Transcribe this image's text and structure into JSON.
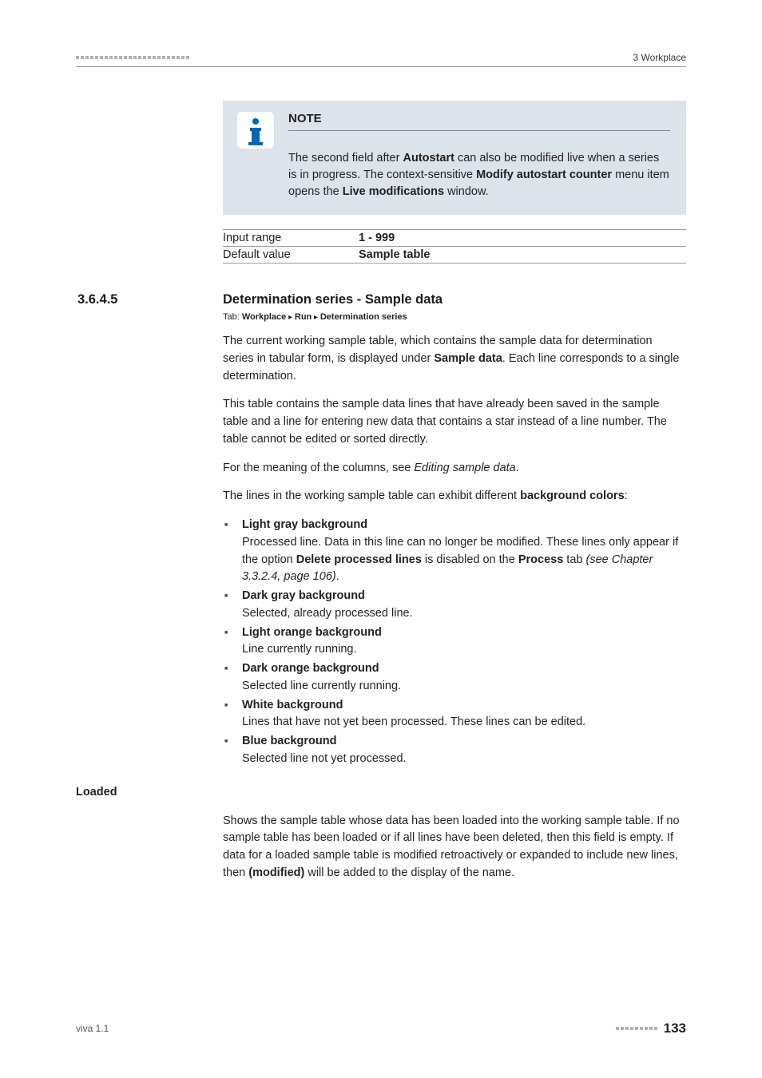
{
  "header": {
    "right": "3 Workplace",
    "dash_count": 24
  },
  "note": {
    "title": "NOTE",
    "text_parts": [
      {
        "t": "The second field after "
      },
      {
        "t": "Autostart",
        "b": true
      },
      {
        "t": " can also be modified live when a series is in progress. The context-sensitive "
      },
      {
        "t": "Modify autostart counter",
        "b": true
      },
      {
        "t": " menu item opens the "
      },
      {
        "t": "Live modifications",
        "b": true
      },
      {
        "t": " window."
      }
    ]
  },
  "specs": [
    {
      "label": "Input range",
      "value": "1 - 999"
    },
    {
      "label": "Default value",
      "value": "Sample table"
    }
  ],
  "section": {
    "number": "3.6.4.5",
    "title": "Determination series - Sample data"
  },
  "tabpath": {
    "prefix": "Tab: ",
    "parts": [
      "Workplace",
      "Run",
      "Determination series"
    ]
  },
  "paragraphs": [
    [
      {
        "t": "The current working sample table, which contains the sample data for determination series in tabular form, is displayed under "
      },
      {
        "t": "Sample data",
        "b": true
      },
      {
        "t": ". Each line corresponds to a single determination."
      }
    ],
    [
      {
        "t": "This table contains the sample data lines that have already been saved in the sample table and a line for entering new data that contains a star instead of a line number. The table cannot be edited or sorted directly."
      }
    ],
    [
      {
        "t": "For the meaning of the columns, see "
      },
      {
        "t": "Editing sample data",
        "i": true
      },
      {
        "t": "."
      }
    ],
    [
      {
        "t": "The lines in the working sample table can exhibit different "
      },
      {
        "t": "background colors",
        "b": true
      },
      {
        "t": ":"
      }
    ]
  ],
  "bullets": [
    {
      "title": "Light gray background",
      "desc": [
        {
          "t": "Processed line. Data in this line can no longer be modified. These lines only appear if the option "
        },
        {
          "t": "Delete processed lines",
          "b": true
        },
        {
          "t": " is disabled on the "
        },
        {
          "t": "Process",
          "b": true
        },
        {
          "t": " tab "
        },
        {
          "t": "(see Chapter 3.3.2.4, page 106)",
          "i": true
        },
        {
          "t": "."
        }
      ]
    },
    {
      "title": "Dark gray background",
      "desc": [
        {
          "t": "Selected, already processed line."
        }
      ]
    },
    {
      "title": "Light orange background",
      "desc": [
        {
          "t": "Line currently running."
        }
      ]
    },
    {
      "title": "Dark orange background",
      "desc": [
        {
          "t": "Selected line currently running."
        }
      ]
    },
    {
      "title": "White background",
      "desc": [
        {
          "t": "Lines that have not yet been processed. These lines can be edited."
        }
      ]
    },
    {
      "title": "Blue background",
      "desc": [
        {
          "t": "Selected line not yet processed."
        }
      ]
    }
  ],
  "field": {
    "label": "Loaded",
    "para": [
      {
        "t": "Shows the sample table whose data has been loaded into the working sample table. If no sample table has been loaded or if all lines have been deleted, then this field is empty. If data for a loaded sample table is modified retroactively or expanded to include new lines, then "
      },
      {
        "t": "(modified)",
        "b": true
      },
      {
        "t": " will be added to the display of the name."
      }
    ]
  },
  "footer": {
    "left": "viva 1.1",
    "page": "133",
    "dash_count": 9
  }
}
